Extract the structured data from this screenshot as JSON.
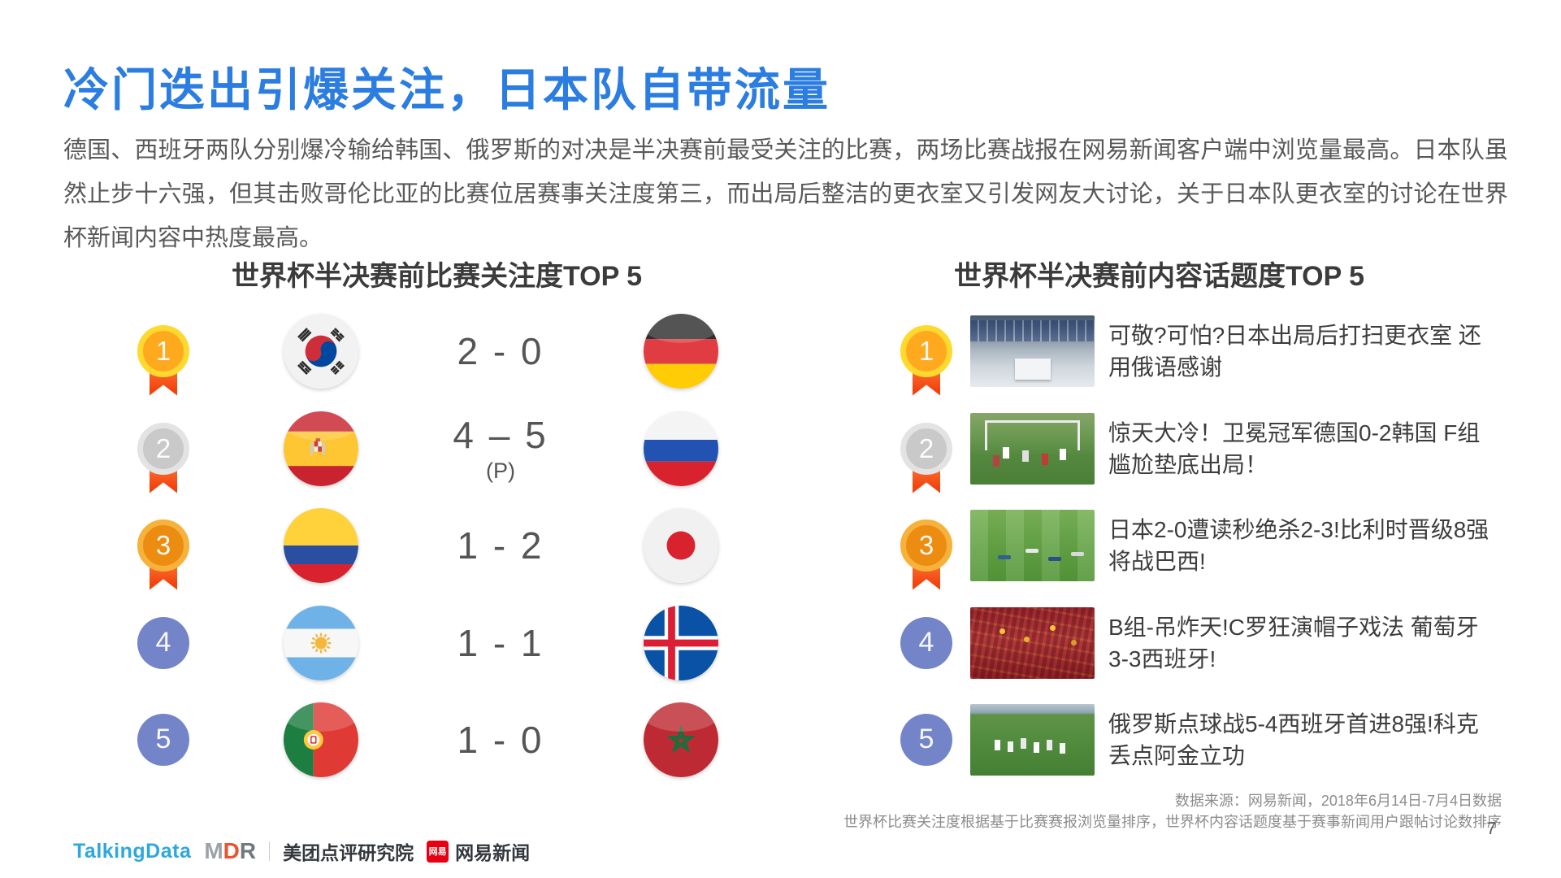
{
  "slide": {
    "title": "冷门迭出引爆关注，日本队自带流量",
    "body": "德国、西班牙两队分别爆冷输给韩国、俄罗斯的对决是半决赛前最受关注的比赛，两场比赛战报在网易新闻客户端中浏览量最高。日本队虽然止步十六强，但其击败哥伦比亚的比赛位居赛事关注度第三，而出局后整洁的更衣室又引发网友大讨论，关于日本队更衣室的讨论在世界杯新闻内容中热度最高。",
    "page_number": "7"
  },
  "left_panel": {
    "title": "世界杯半决赛前比赛关注度TOP 5",
    "rows": [
      {
        "rank": "1",
        "medal": "gold",
        "home_flag": "south-korea",
        "score": "2 - 0",
        "score_note": "",
        "away_flag": "germany"
      },
      {
        "rank": "2",
        "medal": "silver",
        "home_flag": "spain",
        "score": "4 – 5",
        "score_note": "(P)",
        "away_flag": "russia"
      },
      {
        "rank": "3",
        "medal": "bronze",
        "home_flag": "colombia",
        "score": "1 - 2",
        "score_note": "",
        "away_flag": "japan"
      },
      {
        "rank": "4",
        "medal": "plain",
        "home_flag": "argentina",
        "score": "1 - 1",
        "score_note": "",
        "away_flag": "iceland"
      },
      {
        "rank": "5",
        "medal": "plain",
        "home_flag": "portugal",
        "score": "1 - 0",
        "score_note": "",
        "away_flag": "morocco"
      }
    ]
  },
  "right_panel": {
    "title": "世界杯半决赛前内容话题度TOP 5",
    "rows": [
      {
        "rank": "1",
        "medal": "gold",
        "thumbnail": "locker-room",
        "headline": "可敬?可怕?日本出局后打扫更衣室 还用俄语感谢"
      },
      {
        "rank": "2",
        "medal": "silver",
        "thumbnail": "goal-scramble",
        "headline": "惊天大冷！卫冕冠军德国0-2韩国 F组尴尬垫底出局！"
      },
      {
        "rank": "3",
        "medal": "bronze",
        "thumbnail": "pitch-dejected",
        "headline": "日本2-0遭读秒绝杀2-3!比利时晋级8强将战巴西!"
      },
      {
        "rank": "4",
        "medal": "plain",
        "thumbnail": "red-crowd",
        "headline": "B组-吊炸天!C罗狂演帽子戏法 葡萄牙3-3西班牙!"
      },
      {
        "rank": "5",
        "medal": "plain",
        "thumbnail": "team-celebration",
        "headline": "俄罗斯点球战5-4西班牙首进8强!科克丢点阿金立功"
      }
    ]
  },
  "footer": {
    "source_line1": "数据来源：网易新闻，2018年6月14日-7月4日数据",
    "source_line2": "世界杯比赛关注度根据基于比赛赛报浏览量排序，世界杯内容话题度基于赛事新闻用户跟帖讨论数排序",
    "logos": {
      "talkingdata": "TalkingData",
      "mdr_m": "M",
      "mdr_d": "D",
      "mdr_r": "R",
      "meituan_institute": "美团点评研究院",
      "netease_badge": "网易",
      "netease_news": "网易新闻"
    }
  },
  "colors": {
    "accent_blue": "#2B7DE1",
    "rank_badge_blue": "#7384C9",
    "medal_ribbon_orange": "#F2420D",
    "netease_red": "#E60012"
  }
}
